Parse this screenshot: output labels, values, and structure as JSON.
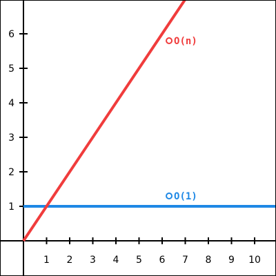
{
  "chart_data": {
    "type": "line",
    "title": "",
    "xlabel": "",
    "ylabel": "",
    "xlim": [
      0,
      11
    ],
    "ylim": [
      -1.5,
      7
    ],
    "x_ticks": [
      "1",
      "2",
      "3",
      "4",
      "5",
      "6",
      "7",
      "8",
      "9",
      "10"
    ],
    "y_ticks": [
      "1",
      "2",
      "3",
      "4",
      "5",
      "6"
    ],
    "grid": false,
    "series": [
      {
        "name": "O(1)",
        "color": "#1e88e5",
        "x": [
          0,
          11
        ],
        "y": [
          1,
          1
        ]
      },
      {
        "name": "O(n)",
        "color": "#f03c3c",
        "x": [
          0,
          7
        ],
        "y": [
          0,
          7
        ]
      }
    ]
  }
}
